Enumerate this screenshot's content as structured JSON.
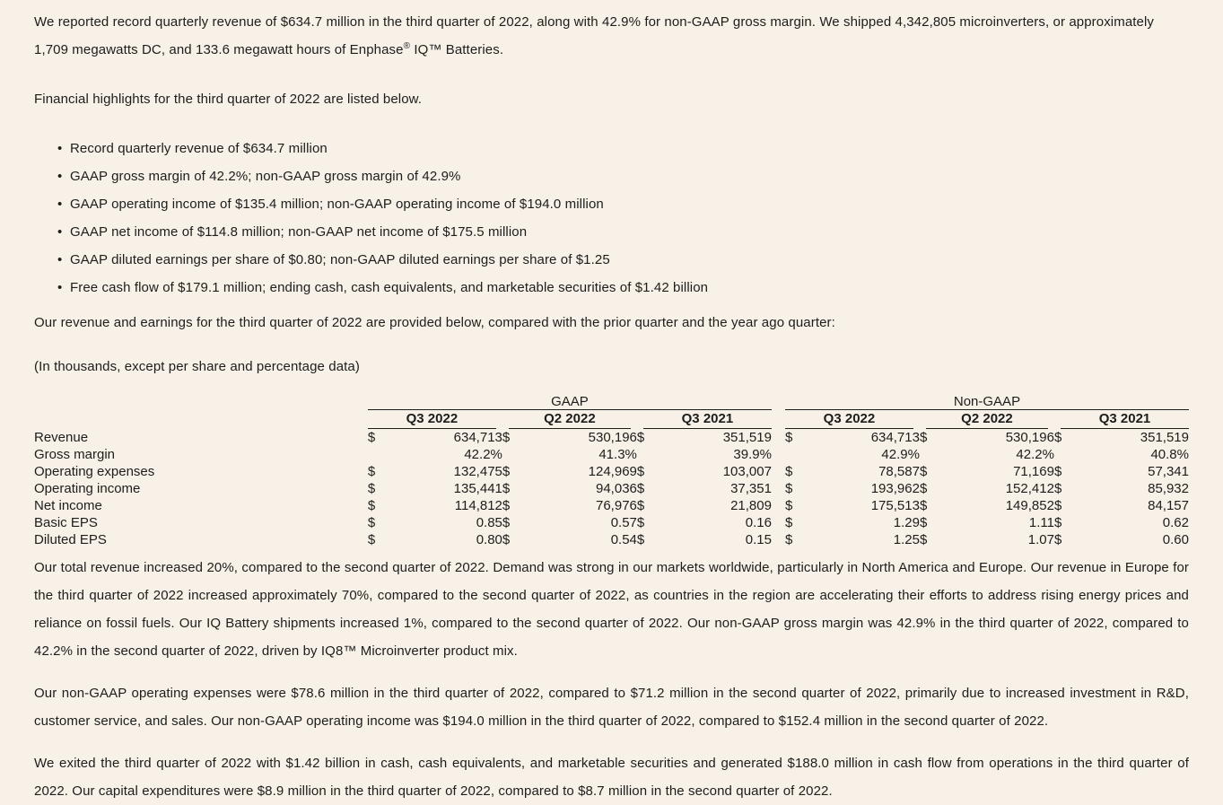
{
  "page": {
    "background_color": "#F7F1E8",
    "text_color": "#1D1D1B",
    "rule_color": "#1D1D1B"
  },
  "intro": {
    "part1": "We reported record quarterly revenue of $634.7 million in the third quarter of 2022, along with 42.9% for non-GAAP gross margin. We shipped 4,342,805 microinverters, or approximately 1,709 megawatts DC, and 133.6 megawatt hours of Enphase",
    "registered_symbol": "®",
    "part2": " IQ™ Batteries."
  },
  "highlights": {
    "intro": "Financial highlights for the third quarter of 2022 are listed below.",
    "marker": "•",
    "items": [
      "Record quarterly revenue of $634.7 million",
      "GAAP gross margin of 42.2%; non-GAAP gross margin of 42.9%",
      "GAAP operating income of $135.4 million; non-GAAP operating income of $194.0 million",
      "GAAP net income of $114.8 million; non-GAAP net income of $175.5 million",
      "GAAP diluted earnings per share of $0.80; non-GAAP diluted earnings per share of $1.25",
      "Free cash flow of $179.1 million; ending cash, cash equivalents, and marketable securities of $1.42 billion"
    ]
  },
  "table_section": {
    "intro": "Our revenue and earnings for the third quarter of 2022 are provided below, compared with the prior quarter and the year ago quarter:",
    "note": "(In thousands, except per share and percentage data)",
    "groups": [
      "GAAP",
      "Non-GAAP"
    ],
    "quarters": [
      "Q3 2022",
      "Q2 2022",
      "Q3 2021"
    ],
    "rows": [
      {
        "label": "Revenue",
        "currency": "$",
        "gaap": [
          "634,713",
          "530,196",
          "351,519"
        ],
        "non_gaap": [
          "634,713",
          "530,196",
          "351,519"
        ]
      },
      {
        "label": "Gross margin",
        "currency": "",
        "gaap": [
          "42.2%",
          "41.3%",
          "39.9%"
        ],
        "non_gaap": [
          "42.9%",
          "42.2%",
          "40.8%"
        ]
      },
      {
        "label": "Operating expenses",
        "currency": "$",
        "gaap": [
          "132,475",
          "124,969",
          "103,007"
        ],
        "non_gaap": [
          "78,587",
          "71,169",
          "57,341"
        ]
      },
      {
        "label": "Operating income",
        "currency": "$",
        "gaap": [
          "135,441",
          "94,036",
          "37,351"
        ],
        "non_gaap": [
          "193,962",
          "152,412",
          "85,932"
        ]
      },
      {
        "label": "Net income",
        "currency": "$",
        "gaap": [
          "114,812",
          "76,976",
          "21,809"
        ],
        "non_gaap": [
          "175,513",
          "149,852",
          "84,157"
        ]
      },
      {
        "label": "Basic EPS",
        "currency": "$",
        "gaap": [
          "0.85",
          "0.57",
          "0.16"
        ],
        "non_gaap": [
          "1.29",
          "1.11",
          "0.62"
        ]
      },
      {
        "label": "Diluted EPS",
        "currency": "$",
        "gaap": [
          "0.80",
          "0.54",
          "0.15"
        ],
        "non_gaap": [
          "1.25",
          "1.07",
          "0.60"
        ]
      }
    ]
  },
  "paragraphs": [
    "Our total revenue increased 20%, compared to the second quarter of 2022. Demand was strong in our markets worldwide, particularly in North America and Europe. Our revenue in Europe for the third quarter of 2022 increased approximately 70%, compared to the second quarter of 2022, as countries in the region are accelerating their efforts to address rising energy prices and reliance on fossil fuels. Our IQ Battery shipments increased 1%, compared to the second quarter of 2022. Our non-GAAP gross margin was 42.9% in the third quarter of 2022, compared to 42.2% in the second quarter of 2022, driven by IQ8™ Microinverter product mix.",
    "Our non-GAAP operating expenses were $78.6 million in the third quarter of 2022, compared to $71.2 million in the second quarter of 2022, primarily due to increased investment in R&D, customer service, and sales. Our non-GAAP operating income was $194.0 million in the third quarter of 2022, compared to $152.4 million in the second quarter of 2022.",
    "We exited the third quarter of 2022 with $1.42 billion in cash, cash equivalents, and marketable securities and generated $188.0 million in cash flow from operations in the third quarter of 2022. Our capital expenditures were $8.9 million in the third quarter of 2022, compared to $8.7 million in the second quarter of 2022."
  ]
}
